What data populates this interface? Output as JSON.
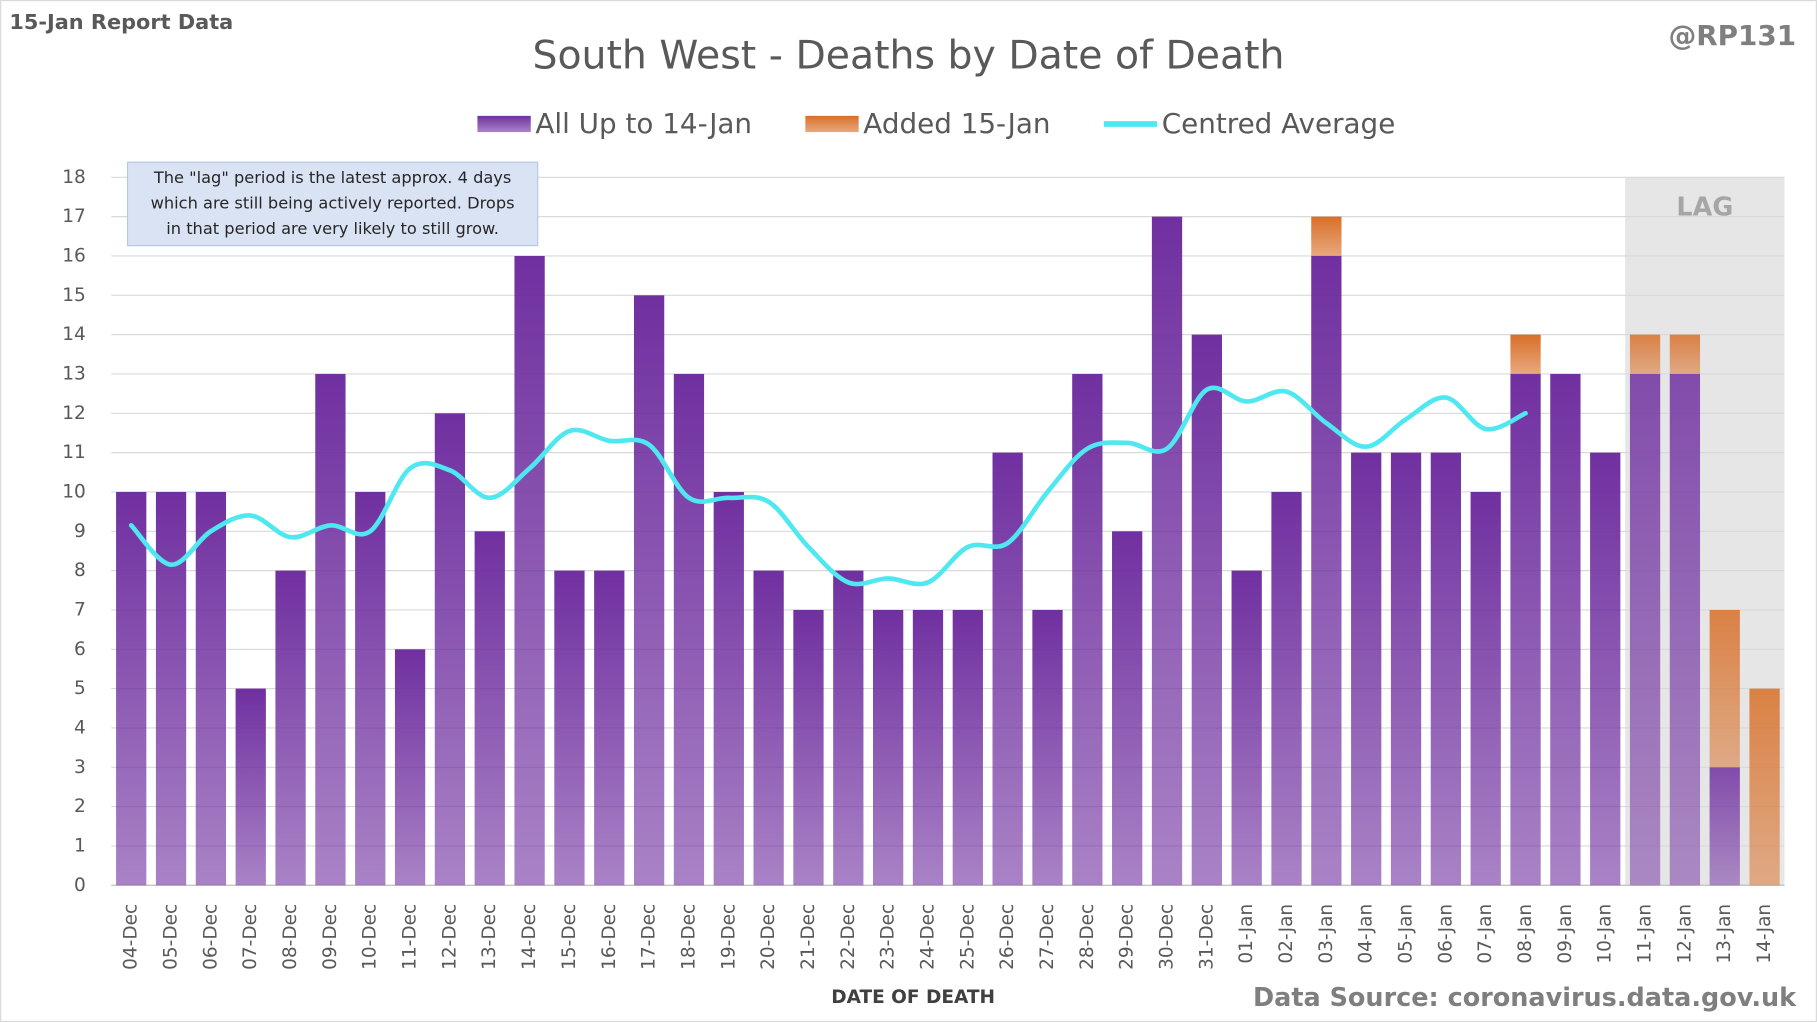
{
  "chart_data": {
    "type": "bar",
    "report_label": "15-Jan Report Data",
    "author": "@RP131",
    "title": "South West - Deaths by Date of Death",
    "x_label": "DATE OF DEATH",
    "source": "Data Source: coronavirus.data.gov.uk",
    "annotation": [
      "The \"lag\" period is the latest approx. 4 days",
      "which are still being actively reported. Drops",
      "in that period are very likely to still grow."
    ],
    "lag": {
      "label": "LAG",
      "from": "11-Jan"
    },
    "categories": [
      "04-Dec",
      "05-Dec",
      "06-Dec",
      "07-Dec",
      "08-Dec",
      "09-Dec",
      "10-Dec",
      "11-Dec",
      "12-Dec",
      "13-Dec",
      "14-Dec",
      "15-Dec",
      "16-Dec",
      "17-Dec",
      "18-Dec",
      "19-Dec",
      "20-Dec",
      "21-Dec",
      "22-Dec",
      "23-Dec",
      "24-Dec",
      "25-Dec",
      "26-Dec",
      "27-Dec",
      "28-Dec",
      "29-Dec",
      "30-Dec",
      "31-Dec",
      "01-Jan",
      "02-Jan",
      "03-Jan",
      "04-Jan",
      "05-Jan",
      "06-Jan",
      "07-Jan",
      "08-Jan",
      "09-Jan",
      "10-Jan",
      "11-Jan",
      "12-Jan",
      "13-Jan",
      "14-Jan"
    ],
    "series": [
      {
        "name": "All Up to 14-Jan",
        "color": "#7030a0",
        "stack": true,
        "values": [
          10,
          10,
          10,
          5,
          8,
          13,
          10,
          6,
          12,
          9,
          16,
          8,
          8,
          15,
          13,
          10,
          8,
          7,
          8,
          7,
          7,
          7,
          11,
          7,
          13,
          9,
          17,
          14,
          8,
          10,
          16,
          11,
          11,
          11,
          10,
          13,
          13,
          11,
          13,
          13,
          3,
          0
        ]
      },
      {
        "name": "Added 15-Jan",
        "color": "#d86f28",
        "stack": true,
        "values": [
          0,
          0,
          0,
          0,
          0,
          0,
          0,
          0,
          0,
          0,
          0,
          0,
          0,
          0,
          0,
          0,
          0,
          0,
          0,
          0,
          0,
          0,
          0,
          0,
          0,
          0,
          0,
          0,
          0,
          0,
          1,
          0,
          0,
          0,
          0,
          1,
          0,
          0,
          1,
          1,
          4,
          5
        ]
      },
      {
        "name": "Centred Average",
        "color": "#4fe8f0",
        "type": "line",
        "values": [
          9.15,
          8.15,
          9.0,
          9.4,
          8.85,
          9.15,
          9.0,
          10.6,
          10.55,
          9.85,
          10.6,
          11.55,
          11.3,
          11.2,
          9.85,
          9.85,
          9.75,
          8.6,
          7.7,
          7.8,
          7.7,
          8.6,
          8.7,
          10.0,
          11.1,
          11.25,
          11.1,
          12.6,
          12.3,
          12.55,
          11.75,
          11.15,
          11.85,
          12.4,
          11.6,
          12.0,
          null,
          null,
          null,
          null,
          null,
          null
        ]
      }
    ],
    "ylim": [
      0,
      18
    ],
    "yticks": [
      0,
      1,
      2,
      3,
      4,
      5,
      6,
      7,
      8,
      9,
      10,
      11,
      12,
      13,
      14,
      15,
      16,
      17,
      18
    ],
    "grid": true
  }
}
